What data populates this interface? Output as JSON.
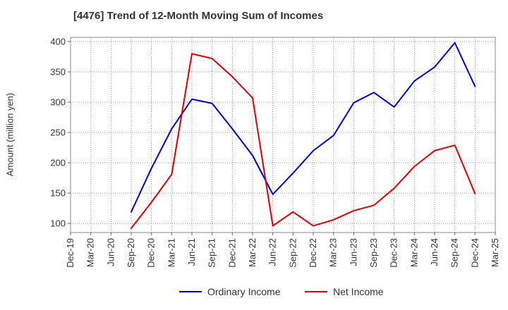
{
  "chart_data": {
    "type": "line",
    "title": "[4476]  Trend of 12-Month Moving Sum of Incomes",
    "xlabel": "",
    "ylabel": "Amount (million yen)",
    "categories": [
      "Dec-19",
      "Mar-20",
      "Jun-20",
      "Sep-20",
      "Dec-20",
      "Mar-21",
      "Jun-21",
      "Sep-21",
      "Dec-21",
      "Mar-22",
      "Jun-22",
      "Sep-22",
      "Dec-22",
      "Mar-23",
      "Jun-23",
      "Sep-23",
      "Dec-23",
      "Mar-24",
      "Jun-24",
      "Sep-24",
      "Dec-24",
      "Mar-25"
    ],
    "yticks": [
      100,
      150,
      200,
      250,
      300,
      350,
      400
    ],
    "ylim": [
      85,
      407
    ],
    "grid": true,
    "legend_position": "bottom",
    "series": [
      {
        "name": "Ordinary Income",
        "color": "#0000cc",
        "values": [
          null,
          null,
          null,
          119,
          191,
          256,
          305,
          298,
          256,
          212,
          148,
          183,
          220,
          245,
          299,
          316,
          292,
          335,
          358,
          398,
          326,
          null
        ]
      },
      {
        "name": "Net Income",
        "color": "#dd0000",
        "values": [
          null,
          null,
          null,
          92,
          135,
          181,
          380,
          372,
          342,
          307,
          96,
          119,
          96,
          106,
          121,
          130,
          158,
          194,
          220,
          229,
          149,
          null
        ]
      }
    ]
  }
}
